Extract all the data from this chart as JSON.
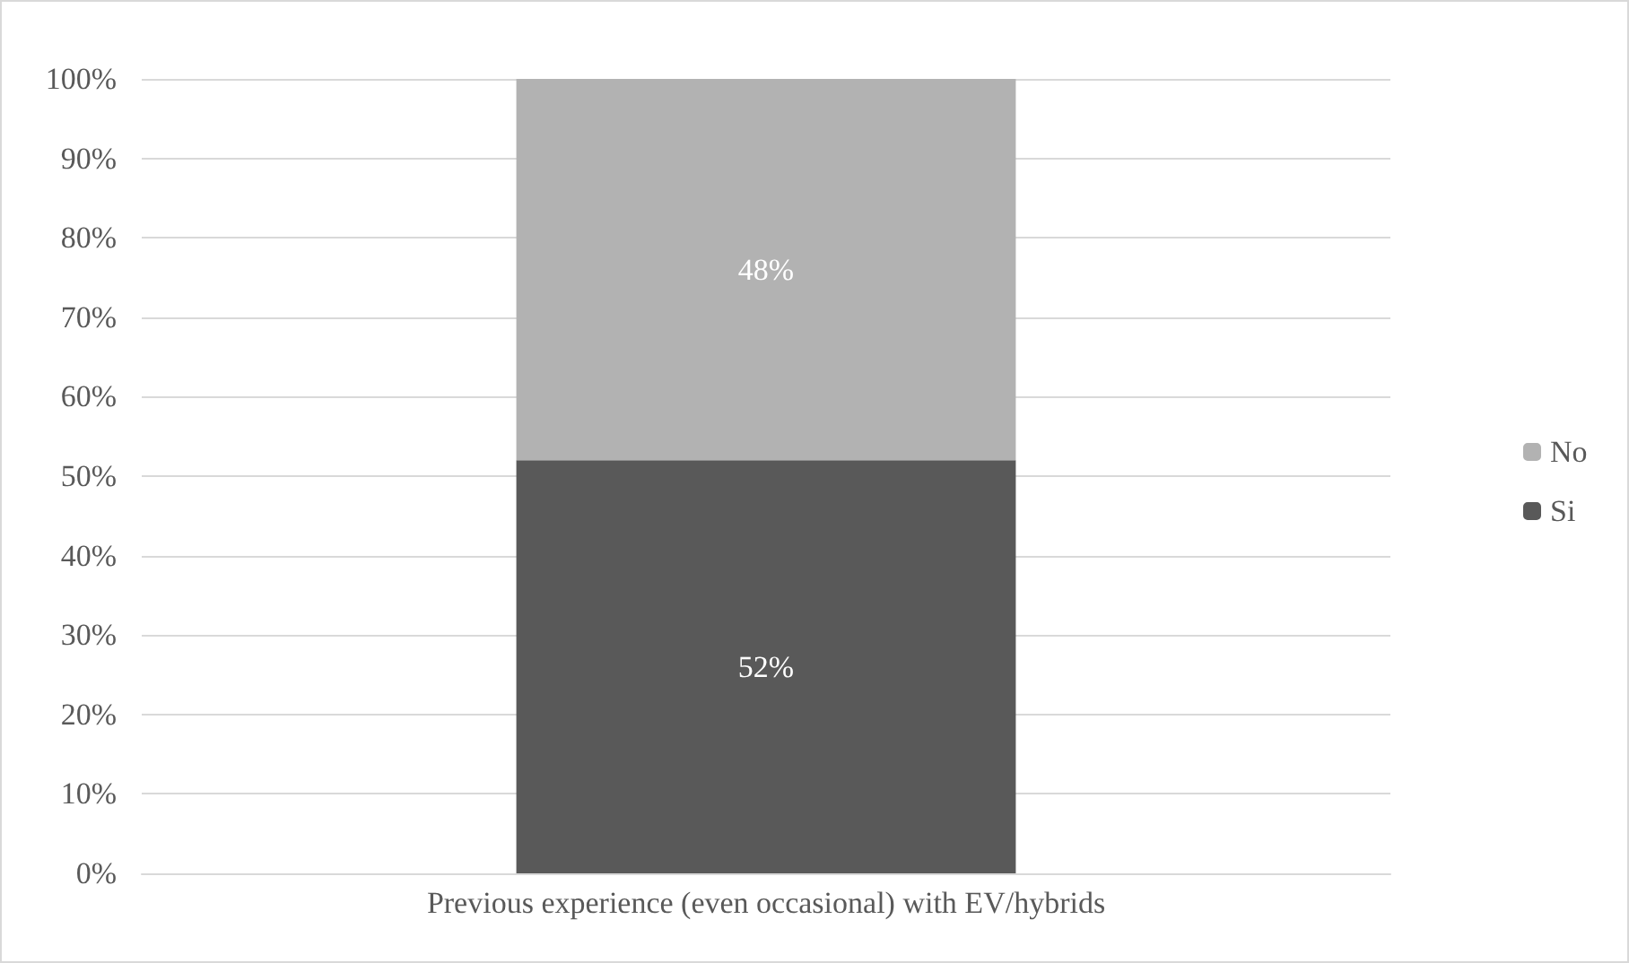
{
  "chart_data": {
    "type": "bar",
    "stacked": true,
    "categories": [
      "Previous experience (even occasional) with EV/hybrids"
    ],
    "series": [
      {
        "name": "Si",
        "color": "#595959",
        "values": [
          52
        ],
        "value_labels": [
          "52%"
        ]
      },
      {
        "name": "No",
        "color": "#b2b2b2",
        "values": [
          48
        ],
        "value_labels": [
          "48%"
        ]
      }
    ],
    "ylim": [
      0,
      100
    ],
    "yticks": [
      {
        "value": 0,
        "label": "0%"
      },
      {
        "value": 10,
        "label": "10%"
      },
      {
        "value": 20,
        "label": "20%"
      },
      {
        "value": 30,
        "label": "30%"
      },
      {
        "value": 40,
        "label": "40%"
      },
      {
        "value": 50,
        "label": "50%"
      },
      {
        "value": 60,
        "label": "60%"
      },
      {
        "value": 70,
        "label": "70%"
      },
      {
        "value": 80,
        "label": "80%"
      },
      {
        "value": 90,
        "label": "90%"
      },
      {
        "value": 100,
        "label": "100%"
      }
    ],
    "grid": "y",
    "legend": "right"
  }
}
